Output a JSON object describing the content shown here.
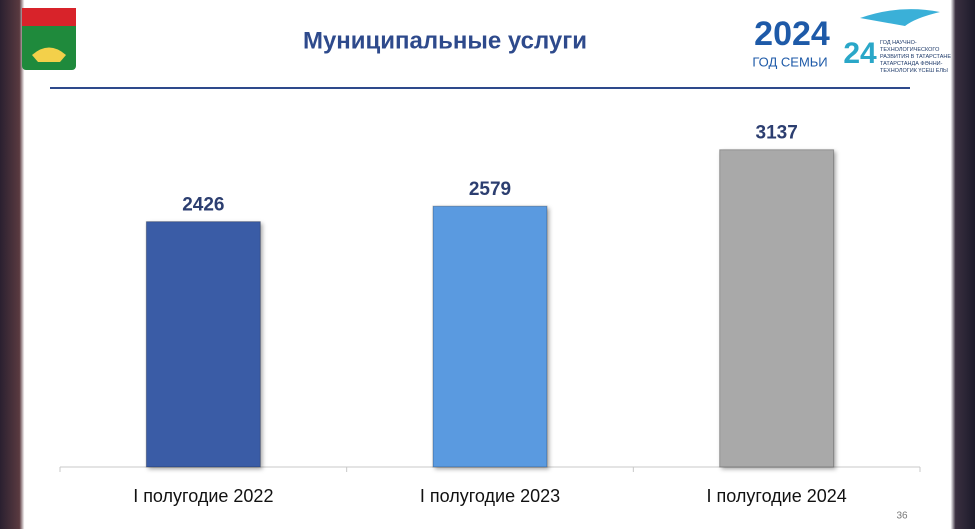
{
  "chart_data": {
    "type": "bar",
    "title": "Муниципальные услуги",
    "categories": [
      "I полугодие 2022",
      "I полугодие 2023",
      "I полугодие 2024"
    ],
    "values": [
      2426,
      2579,
      3137
    ],
    "colors": [
      "#3a5ca6",
      "#5a9ae0",
      "#a9a9a9"
    ],
    "ylim": [
      0,
      3500
    ]
  },
  "slide": {
    "badge_year": "2024",
    "badge_caption": "ГОД СЕМЬИ",
    "science_year": "24",
    "science_caption": "ГОД НАУЧНО-ТЕХНОЛОГИЧЕСКОГО РАЗВИТИЯ В ТАТАРСТАНЕ",
    "science_caption_tt": "ТАТАРСТАНДА ФӘННИ-ТЕХНОЛОГИК ҮСЕШ ЕЛЫ",
    "page_number": "36"
  }
}
